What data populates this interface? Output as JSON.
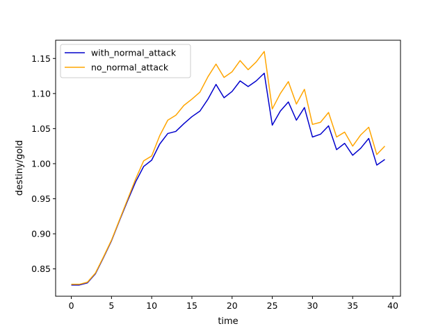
{
  "chart_data": {
    "type": "line",
    "title": "",
    "xlabel": "time",
    "ylabel": "destiny/gold",
    "xlim": [
      -1.95,
      40.95
    ],
    "ylim": [
      0.811,
      1.176
    ],
    "xticks": [
      0,
      5,
      10,
      15,
      20,
      25,
      30,
      35,
      40
    ],
    "yticks": [
      0.85,
      0.9,
      0.95,
      1.0,
      1.05,
      1.1,
      1.15
    ],
    "grid": false,
    "legend_position": "top-left",
    "x": [
      0,
      1,
      2,
      3,
      4,
      5,
      6,
      7,
      8,
      9,
      10,
      11,
      12,
      13,
      14,
      15,
      16,
      17,
      18,
      19,
      20,
      21,
      22,
      23,
      24,
      25,
      26,
      27,
      28,
      29,
      30,
      31,
      32,
      33,
      34,
      35,
      36,
      37,
      38,
      39
    ],
    "series": [
      {
        "name": "with_normal_attack",
        "color": "#0000cc",
        "values": [
          0.827,
          0.827,
          0.83,
          0.843,
          0.866,
          0.89,
          0.919,
          0.947,
          0.974,
          0.996,
          1.005,
          1.028,
          1.043,
          1.046,
          1.057,
          1.067,
          1.075,
          1.092,
          1.113,
          1.094,
          1.103,
          1.118,
          1.11,
          1.118,
          1.129,
          1.055,
          1.075,
          1.088,
          1.062,
          1.08,
          1.038,
          1.042,
          1.054,
          1.02,
          1.029,
          1.012,
          1.022,
          1.036,
          0.998,
          1.006
        ]
      },
      {
        "name": "no_normal_attack",
        "color": "#ffa500",
        "values": [
          0.828,
          0.828,
          0.831,
          0.844,
          0.867,
          0.891,
          0.92,
          0.949,
          0.978,
          1.004,
          1.011,
          1.04,
          1.062,
          1.069,
          1.083,
          1.092,
          1.102,
          1.124,
          1.142,
          1.123,
          1.131,
          1.147,
          1.134,
          1.145,
          1.16,
          1.078,
          1.1,
          1.117,
          1.085,
          1.106,
          1.056,
          1.059,
          1.073,
          1.038,
          1.045,
          1.025,
          1.041,
          1.052,
          1.013,
          1.025
        ]
      }
    ]
  }
}
